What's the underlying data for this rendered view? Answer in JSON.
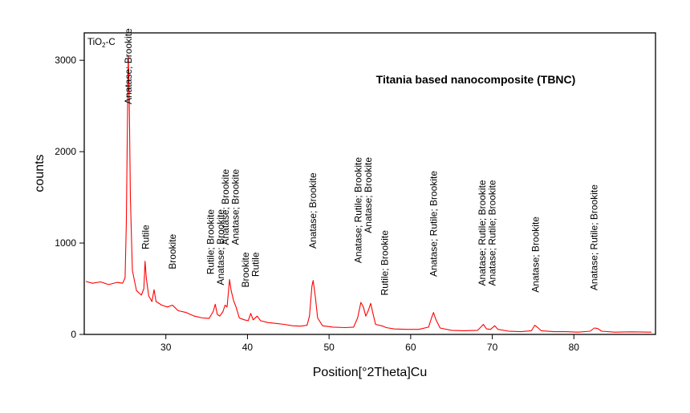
{
  "chart_data": {
    "type": "line",
    "title": "Titania based nanocomposite (TBNC)",
    "sample_label": {
      "base": "TiO",
      "subscript": "2",
      "suffix": "-C"
    },
    "xlabel": "Position[°2Theta]Cu",
    "ylabel": "counts",
    "xlim": [
      20,
      90
    ],
    "ylim": [
      0,
      3300
    ],
    "x_ticks": [
      30,
      40,
      50,
      60,
      70,
      80
    ],
    "y_ticks": [
      0,
      1000,
      2000,
      3000
    ],
    "series": [
      {
        "name": "TiO2-C",
        "color": "#ff0000",
        "points": [
          [
            20.2,
            580
          ],
          [
            21,
            560
          ],
          [
            22,
            575
          ],
          [
            23,
            545
          ],
          [
            24,
            570
          ],
          [
            24.7,
            560
          ],
          [
            25.0,
            620
          ],
          [
            25.15,
            1200
          ],
          [
            25.3,
            2350
          ],
          [
            25.4,
            3050
          ],
          [
            25.5,
            2700
          ],
          [
            25.65,
            1500
          ],
          [
            25.9,
            700
          ],
          [
            26.4,
            480
          ],
          [
            27.0,
            430
          ],
          [
            27.3,
            500
          ],
          [
            27.45,
            800
          ],
          [
            27.6,
            620
          ],
          [
            27.9,
            420
          ],
          [
            28.3,
            360
          ],
          [
            28.55,
            490
          ],
          [
            28.8,
            360
          ],
          [
            29.5,
            320
          ],
          [
            30.2,
            300
          ],
          [
            30.8,
            320
          ],
          [
            31.5,
            260
          ],
          [
            32.5,
            240
          ],
          [
            33.5,
            200
          ],
          [
            34.5,
            180
          ],
          [
            35.3,
            175
          ],
          [
            35.8,
            250
          ],
          [
            36.05,
            330
          ],
          [
            36.3,
            220
          ],
          [
            36.6,
            200
          ],
          [
            37.0,
            250
          ],
          [
            37.25,
            320
          ],
          [
            37.5,
            300
          ],
          [
            37.8,
            600
          ],
          [
            38.0,
            480
          ],
          [
            38.3,
            370
          ],
          [
            38.6,
            300
          ],
          [
            39.0,
            180
          ],
          [
            39.6,
            160
          ],
          [
            40.1,
            150
          ],
          [
            40.4,
            230
          ],
          [
            40.7,
            160
          ],
          [
            41.2,
            200
          ],
          [
            41.6,
            150
          ],
          [
            42.5,
            130
          ],
          [
            43.5,
            120
          ],
          [
            44.5,
            110
          ],
          [
            45.5,
            95
          ],
          [
            46.5,
            90
          ],
          [
            47.3,
            100
          ],
          [
            47.6,
            200
          ],
          [
            47.9,
            530
          ],
          [
            48.05,
            590
          ],
          [
            48.3,
            420
          ],
          [
            48.6,
            180
          ],
          [
            49.2,
            95
          ],
          [
            50.5,
            80
          ],
          [
            52,
            75
          ],
          [
            53.0,
            80
          ],
          [
            53.5,
            180
          ],
          [
            53.9,
            350
          ],
          [
            54.2,
            300
          ],
          [
            54.5,
            200
          ],
          [
            54.8,
            260
          ],
          [
            55.1,
            340
          ],
          [
            55.35,
            240
          ],
          [
            55.7,
            110
          ],
          [
            56.6,
            90
          ],
          [
            57.0,
            75
          ],
          [
            58,
            60
          ],
          [
            59.5,
            55
          ],
          [
            61,
            55
          ],
          [
            62.2,
            80
          ],
          [
            62.55,
            180
          ],
          [
            62.8,
            240
          ],
          [
            63.1,
            160
          ],
          [
            63.6,
            70
          ],
          [
            65,
            45
          ],
          [
            66.5,
            40
          ],
          [
            68.2,
            45
          ],
          [
            68.6,
            80
          ],
          [
            68.9,
            110
          ],
          [
            69.3,
            60
          ],
          [
            69.8,
            55
          ],
          [
            70.3,
            95
          ],
          [
            70.7,
            55
          ],
          [
            72,
            35
          ],
          [
            73.5,
            30
          ],
          [
            74.8,
            40
          ],
          [
            75.2,
            100
          ],
          [
            75.5,
            80
          ],
          [
            76,
            40
          ],
          [
            77.5,
            30
          ],
          [
            79,
            30
          ],
          [
            80.5,
            25
          ],
          [
            82.0,
            35
          ],
          [
            82.5,
            70
          ],
          [
            82.9,
            65
          ],
          [
            83.4,
            35
          ],
          [
            85,
            25
          ],
          [
            87,
            28
          ],
          [
            89.5,
            25
          ]
        ]
      }
    ],
    "annotations": [
      {
        "x": 25.4,
        "y_top": 3350,
        "lines": [
          "Anatase; Brookite"
        ]
      },
      {
        "x": 27.5,
        "y_top": 1200,
        "lines": [
          "Rutile"
        ]
      },
      {
        "x": 30.8,
        "y_top": 1100,
        "lines": [
          "Brookite"
        ]
      },
      {
        "x": 36.1,
        "y_top": 1370,
        "lines": [
          "Rutile; Brookite",
          "Anatase; Brookite"
        ]
      },
      {
        "x": 37.9,
        "y_top": 1810,
        "lines": [
          "Anatase; Brookite",
          "Anatase; Brookite"
        ]
      },
      {
        "x": 40.4,
        "y_top": 900,
        "lines": [
          "Brookite",
          "Rutile"
        ]
      },
      {
        "x": 48.0,
        "y_top": 1770,
        "lines": [
          "Anatase; Brookite"
        ]
      },
      {
        "x": 54.2,
        "y_top": 1940,
        "lines": [
          "Anatase; Rutile; Brookite",
          "Anatase; Brookite"
        ]
      },
      {
        "x": 56.8,
        "y_top": 1140,
        "lines": [
          "Rutile; Brookite"
        ]
      },
      {
        "x": 62.8,
        "y_top": 1790,
        "lines": [
          "Anatase; Rutile; Brookite"
        ]
      },
      {
        "x": 69.4,
        "y_top": 1690,
        "lines": [
          "Anatase; Rutile; Brookite",
          "Anatase; Rutile; Brookite"
        ]
      },
      {
        "x": 75.3,
        "y_top": 1290,
        "lines": [
          "Anatase; Brookite"
        ]
      },
      {
        "x": 82.5,
        "y_top": 1640,
        "lines": [
          "Anatase; Rutile; Brookite"
        ]
      }
    ]
  }
}
